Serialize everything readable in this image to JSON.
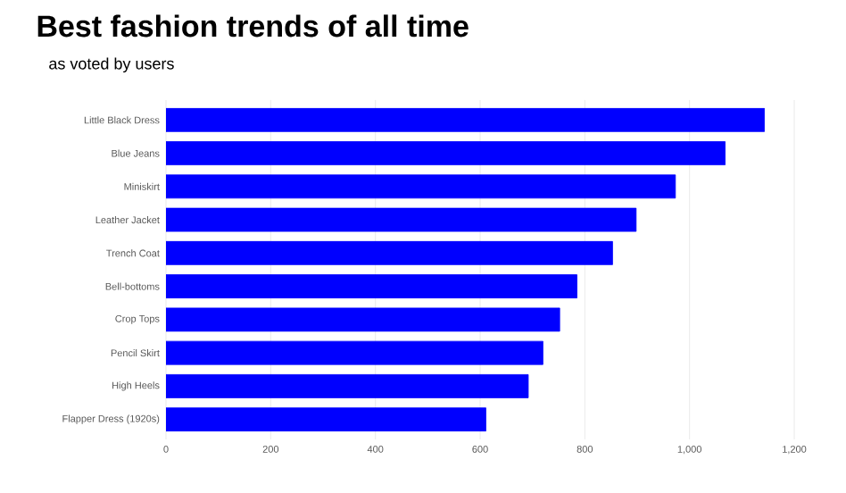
{
  "chart_data": {
    "type": "bar",
    "orientation": "horizontal",
    "title": "Best fashion trends of all time",
    "subtitle": "as voted by users",
    "categories": [
      "Little Black Dress",
      "Blue Jeans",
      "Miniskirt",
      "Leather Jacket",
      "Trench Coat",
      "Bell-bottoms",
      "Crop Tops",
      "Pencil Skirt",
      "High Heels",
      "Flapper Dress (1920s)"
    ],
    "values": [
      1143,
      1068,
      973,
      898,
      853,
      785,
      752,
      720,
      692,
      611
    ],
    "color": "#0000ff",
    "xlim": [
      0,
      1200
    ],
    "xticks": [
      0,
      200,
      400,
      600,
      800,
      {
        "value": 1000,
        "label": "1,000"
      },
      {
        "value": 1200,
        "label": "1,200"
      }
    ],
    "grid": "x"
  }
}
